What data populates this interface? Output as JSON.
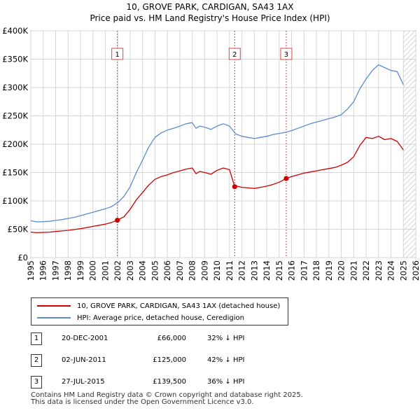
{
  "title": {
    "line1": "10, GROVE PARK, CARDIGAN, SA43 1AX",
    "line2": "Price paid vs. HM Land Registry's House Price Index (HPI)"
  },
  "chart_data": {
    "type": "line",
    "title": "10, GROVE PARK, CARDIGAN, SA43 1AX — Price paid vs. HM Land Registry's House Price Index (HPI)",
    "xlabel": "",
    "ylabel": "",
    "xlim": [
      1995,
      2026
    ],
    "ylim": [
      0,
      400000
    ],
    "x_ticks": [
      "1995",
      "1996",
      "1997",
      "1998",
      "1999",
      "2000",
      "2001",
      "2002",
      "2003",
      "2004",
      "2005",
      "2006",
      "2007",
      "2008",
      "2009",
      "2010",
      "2011",
      "2012",
      "2013",
      "2014",
      "2015",
      "2016",
      "2017",
      "2018",
      "2019",
      "2020",
      "2021",
      "2022",
      "2023",
      "2024",
      "2025",
      "2026"
    ],
    "y_ticks": [
      {
        "value": 0,
        "label": "£0"
      },
      {
        "value": 50000,
        "label": "£50K"
      },
      {
        "value": 100000,
        "label": "£100K"
      },
      {
        "value": 150000,
        "label": "£150K"
      },
      {
        "value": 200000,
        "label": "£200K"
      },
      {
        "value": 250000,
        "label": "£250K"
      },
      {
        "value": 300000,
        "label": "£300K"
      },
      {
        "value": 350000,
        "label": "£350K"
      },
      {
        "value": 400000,
        "label": "£400K"
      }
    ],
    "grid": true,
    "hatched_future_from": 2025.0,
    "series": [
      {
        "name": "10, GROVE PARK, CARDIGAN, SA43 1AX (detached house)",
        "color": "#cc0000",
        "x": [
          1995.0,
          1995.5,
          1996.0,
          1996.5,
          1997.0,
          1997.5,
          1998.0,
          1998.5,
          1999.0,
          1999.5,
          2000.0,
          2000.5,
          2001.0,
          2001.5,
          2001.97,
          2002.5,
          2003.0,
          2003.5,
          2004.0,
          2004.5,
          2005.0,
          2005.5,
          2006.0,
          2006.5,
          2007.0,
          2007.5,
          2008.0,
          2008.3,
          2008.6,
          2009.0,
          2009.5,
          2010.0,
          2010.5,
          2011.0,
          2011.42,
          2011.6,
          2012.0,
          2012.5,
          2013.0,
          2013.5,
          2014.0,
          2014.5,
          2015.0,
          2015.57,
          2016.0,
          2016.5,
          2017.0,
          2017.5,
          2018.0,
          2018.5,
          2019.0,
          2019.5,
          2020.0,
          2020.5,
          2021.0,
          2021.5,
          2022.0,
          2022.5,
          2023.0,
          2023.5,
          2024.0,
          2024.5,
          2025.0
        ],
        "y": [
          45000,
          44000,
          44500,
          45000,
          46000,
          47000,
          48000,
          49500,
          51000,
          53000,
          55000,
          57000,
          59000,
          62000,
          66000,
          72000,
          85000,
          102000,
          115000,
          128000,
          138000,
          143000,
          146000,
          150000,
          153000,
          156000,
          158000,
          148000,
          152000,
          150000,
          147000,
          154000,
          158000,
          155000,
          125000,
          126000,
          124000,
          123000,
          122000,
          124000,
          126000,
          129000,
          133000,
          139500,
          143000,
          146000,
          149000,
          151000,
          153000,
          155000,
          157000,
          159000,
          163000,
          168000,
          178000,
          198000,
          212000,
          210000,
          214000,
          208000,
          210000,
          205000,
          190000
        ]
      },
      {
        "name": "HPI: Average price, detached house, Ceredigion",
        "color": "#5b8bd0",
        "x": [
          1995.0,
          1995.5,
          1996.0,
          1996.5,
          1997.0,
          1997.5,
          1998.0,
          1998.5,
          1999.0,
          1999.5,
          2000.0,
          2000.5,
          2001.0,
          2001.5,
          2002.0,
          2002.5,
          2003.0,
          2003.5,
          2004.0,
          2004.5,
          2005.0,
          2005.5,
          2006.0,
          2006.5,
          2007.0,
          2007.5,
          2008.0,
          2008.3,
          2008.6,
          2009.0,
          2009.5,
          2010.0,
          2010.5,
          2011.0,
          2011.5,
          2012.0,
          2012.5,
          2013.0,
          2013.5,
          2014.0,
          2014.5,
          2015.0,
          2015.5,
          2016.0,
          2016.5,
          2017.0,
          2017.5,
          2018.0,
          2018.5,
          2019.0,
          2019.5,
          2020.0,
          2020.5,
          2021.0,
          2021.5,
          2022.0,
          2022.5,
          2023.0,
          2023.5,
          2024.0,
          2024.5,
          2025.0
        ],
        "y": [
          65000,
          63000,
          63500,
          64000,
          65500,
          67000,
          69000,
          71000,
          74000,
          77000,
          80000,
          83000,
          86000,
          90000,
          97000,
          108000,
          125000,
          150000,
          172000,
          195000,
          212000,
          220000,
          225000,
          228000,
          232000,
          236000,
          238000,
          228000,
          232000,
          230000,
          226000,
          232000,
          236000,
          232000,
          218000,
          214000,
          212000,
          210000,
          212000,
          214000,
          217000,
          219000,
          221000,
          224000,
          228000,
          232000,
          236000,
          239000,
          242000,
          245000,
          248000,
          252000,
          262000,
          275000,
          298000,
          315000,
          330000,
          340000,
          335000,
          330000,
          328000,
          305000
        ]
      }
    ],
    "markers": [
      {
        "label": "1",
        "x": 2001.97,
        "y": 66000
      },
      {
        "label": "2",
        "x": 2011.42,
        "y": 125000
      },
      {
        "label": "3",
        "x": 2015.57,
        "y": 139500
      }
    ]
  },
  "legend": {
    "items": [
      {
        "label": "10, GROVE PARK, CARDIGAN, SA43 1AX (detached house)",
        "color": "#cc0000"
      },
      {
        "label": "HPI: Average price, detached house, Ceredigion",
        "color": "#5b8bd0"
      }
    ]
  },
  "transactions": [
    {
      "num": "1",
      "date": "20-DEC-2001",
      "price": "£66,000",
      "hpi": "32% ↓ HPI"
    },
    {
      "num": "2",
      "date": "02-JUN-2011",
      "price": "£125,000",
      "hpi": "42% ↓ HPI"
    },
    {
      "num": "3",
      "date": "27-JUL-2015",
      "price": "£139,500",
      "hpi": "36% ↓ HPI"
    }
  ],
  "footer": {
    "line1": "Contains HM Land Registry data © Crown copyright and database right 2025.",
    "line2": "This data is licensed under the Open Government Licence v3.0."
  }
}
